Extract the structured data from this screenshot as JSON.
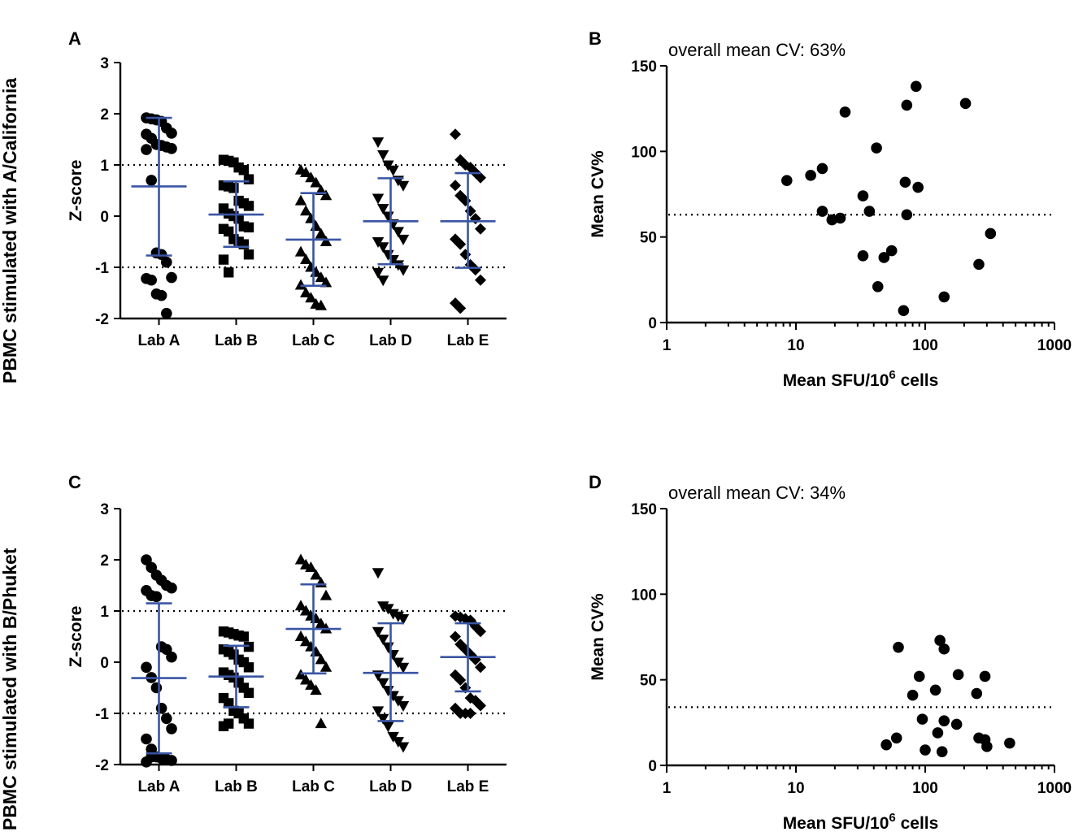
{
  "row_labels": [
    "PBMC stimulated with A/California",
    "PBMC stimulated with B/Phuket"
  ],
  "chart_data": [
    {
      "panel": "A",
      "type": "scatter",
      "subtype": "dot-plot",
      "ylabel": "Z-score",
      "xlabel": "",
      "ylim": [
        -2,
        3
      ],
      "yticks": [
        3,
        2,
        1,
        0,
        -1,
        -2
      ],
      "ref_lines": [
        1,
        -1
      ],
      "categories": [
        "Lab A",
        "Lab B",
        "Lab C",
        "Lab D",
        "Lab E"
      ],
      "markers": [
        "circle",
        "square",
        "triangle-up",
        "triangle-down",
        "diamond"
      ],
      "summary": [
        {
          "mean": 0.58,
          "upper": 1.92,
          "lower": -0.77
        },
        {
          "mean": 0.03,
          "upper": 0.68,
          "lower": -0.6
        },
        {
          "mean": -0.46,
          "upper": 0.45,
          "lower": -1.36
        },
        {
          "mean": -0.1,
          "upper": 0.74,
          "lower": -0.94
        },
        {
          "mean": -0.1,
          "upper": 0.84,
          "lower": -1.01
        }
      ],
      "points": [
        [
          1.92,
          1.9,
          1.88,
          1.85,
          1.72,
          1.62,
          1.6,
          1.52,
          1.4,
          1.38,
          1.35,
          1.32,
          1.3,
          0.7,
          -0.72,
          -0.75,
          -0.9,
          -1.2,
          -1.22,
          -1.25,
          -1.52,
          -1.55,
          -1.9
        ],
        [
          1.1,
          1.08,
          1.05,
          0.95,
          0.9,
          0.72,
          0.6,
          0.58,
          0.55,
          0.3,
          0.25,
          0.2,
          0.15,
          0.05,
          0.0,
          -0.05,
          -0.2,
          -0.22,
          -0.25,
          -0.3,
          -0.45,
          -0.5,
          -0.55,
          -0.75,
          -0.85,
          -1.1
        ],
        [
          0.9,
          0.85,
          0.75,
          0.65,
          0.5,
          0.4,
          0.3,
          0.1,
          -0.05,
          -0.2,
          -0.35,
          -0.5,
          -0.7,
          -0.85,
          -1.0,
          -1.1,
          -1.2,
          -1.3,
          -1.35,
          -1.5,
          -1.6,
          -1.72,
          -1.75
        ],
        [
          1.45,
          1.2,
          1.0,
          0.9,
          0.7,
          0.6,
          0.35,
          0.15,
          0.0,
          -0.15,
          -0.3,
          -0.45,
          -0.5,
          -0.6,
          -0.75,
          -0.85,
          -0.95,
          -1.05,
          -1.1,
          -1.25
        ],
        [
          1.6,
          1.1,
          1.0,
          0.95,
          0.85,
          0.75,
          0.6,
          0.4,
          0.3,
          0.1,
          -0.05,
          -0.25,
          -0.45,
          -0.55,
          -0.75,
          -0.95,
          -1.05,
          -1.25,
          -1.7,
          -1.8
        ]
      ]
    },
    {
      "panel": "B",
      "type": "scatter",
      "annotation": "overall mean CV: 63%",
      "ylabel": "Mean CV%",
      "xlabel": "Mean SFU/10",
      "xlabel_sup": "6",
      "xlabel_tail": " cells",
      "xscale": "log",
      "xlim": [
        1,
        1000
      ],
      "xticks": [
        "1",
        "10",
        "100",
        "1000"
      ],
      "ylim": [
        0,
        150
      ],
      "yticks": [
        150,
        100,
        50,
        0
      ],
      "ref_line": 63,
      "x": [
        8.5,
        13,
        16,
        16,
        19,
        22,
        24,
        33,
        33,
        37,
        42,
        43,
        48,
        55,
        70,
        72,
        72,
        85,
        88,
        140,
        205,
        260,
        320,
        68
      ],
      "y": [
        83,
        86,
        90,
        65,
        60,
        61,
        123,
        74,
        39,
        65,
        102,
        21,
        38,
        42,
        82,
        127,
        63,
        138,
        79,
        15,
        128,
        34,
        52,
        7
      ]
    },
    {
      "panel": "C",
      "type": "scatter",
      "subtype": "dot-plot",
      "ylabel": "Z-score",
      "xlabel": "",
      "ylim": [
        -2,
        3
      ],
      "yticks": [
        3,
        2,
        1,
        0,
        -1,
        -2
      ],
      "ref_lines": [
        1,
        -1
      ],
      "categories": [
        "Lab A",
        "Lab B",
        "Lab C",
        "Lab D",
        "Lab E"
      ],
      "markers": [
        "circle",
        "square",
        "triangle-up",
        "triangle-down",
        "diamond"
      ],
      "summary": [
        {
          "mean": -0.31,
          "upper": 1.15,
          "lower": -1.78
        },
        {
          "mean": -0.28,
          "upper": 0.32,
          "lower": -0.88
        },
        {
          "mean": 0.65,
          "upper": 1.52,
          "lower": -0.22
        },
        {
          "mean": -0.21,
          "upper": 0.76,
          "lower": -1.15
        },
        {
          "mean": 0.1,
          "upper": 0.76,
          "lower": -0.57
        }
      ],
      "points": [
        [
          2.0,
          1.85,
          1.7,
          1.6,
          1.5,
          1.45,
          1.4,
          1.3,
          1.28,
          0.3,
          0.25,
          0.1,
          -0.1,
          -0.3,
          -0.5,
          -0.9,
          -1.1,
          -1.3,
          -1.5,
          -1.7,
          -1.85,
          -1.88,
          -1.9,
          -1.92,
          -1.95,
          -1.85
        ],
        [
          0.6,
          0.58,
          0.55,
          0.52,
          0.5,
          0.3,
          0.25,
          0.2,
          0.15,
          0.05,
          0.0,
          -0.1,
          -0.2,
          -0.25,
          -0.3,
          -0.4,
          -0.5,
          -0.6,
          -0.7,
          -0.8,
          -0.95,
          -1.0,
          -1.1,
          -1.2,
          -1.25,
          -1.2
        ],
        [
          2.0,
          1.9,
          1.85,
          1.7,
          1.55,
          1.3,
          1.1,
          1.0,
          0.9,
          0.85,
          0.75,
          0.65,
          0.5,
          0.4,
          0.3,
          0.2,
          0.05,
          -0.1,
          -0.25,
          -0.35,
          -0.45,
          -0.55,
          -1.2
        ],
        [
          1.75,
          1.1,
          1.05,
          0.95,
          0.9,
          0.85,
          0.6,
          0.45,
          0.3,
          0.15,
          0.0,
          -0.1,
          -0.25,
          -0.4,
          -0.55,
          -0.65,
          -0.75,
          -0.85,
          -0.95,
          -1.1,
          -1.25,
          -1.45,
          -1.55,
          -1.65
        ],
        [
          0.9,
          0.88,
          0.85,
          0.82,
          0.7,
          0.6,
          0.5,
          0.35,
          0.25,
          0.15,
          0.05,
          -0.1,
          -0.25,
          -0.35,
          -0.5,
          -0.7,
          -0.75,
          -0.85,
          -0.9,
          -1.0,
          -1.0,
          -1.0
        ]
      ]
    },
    {
      "panel": "D",
      "type": "scatter",
      "annotation": "overall mean CV: 34%",
      "ylabel": "Mean CV%",
      "xlabel": "Mean SFU/10",
      "xlabel_sup": "6",
      "xlabel_tail": " cells",
      "xscale": "log",
      "xlim": [
        1,
        1000
      ],
      "xticks": [
        "1",
        "10",
        "100",
        "1000"
      ],
      "ylim": [
        0,
        150
      ],
      "yticks": [
        150,
        100,
        50,
        0
      ],
      "ref_line": 34,
      "x": [
        50,
        60,
        62,
        80,
        90,
        95,
        100,
        120,
        125,
        130,
        135,
        140,
        140,
        175,
        180,
        250,
        260,
        290,
        290,
        300,
        450
      ],
      "y": [
        12,
        16,
        69,
        41,
        52,
        27,
        9,
        44,
        19,
        73,
        8,
        26,
        68,
        24,
        53,
        42,
        16,
        15,
        52,
        11,
        13
      ]
    }
  ]
}
